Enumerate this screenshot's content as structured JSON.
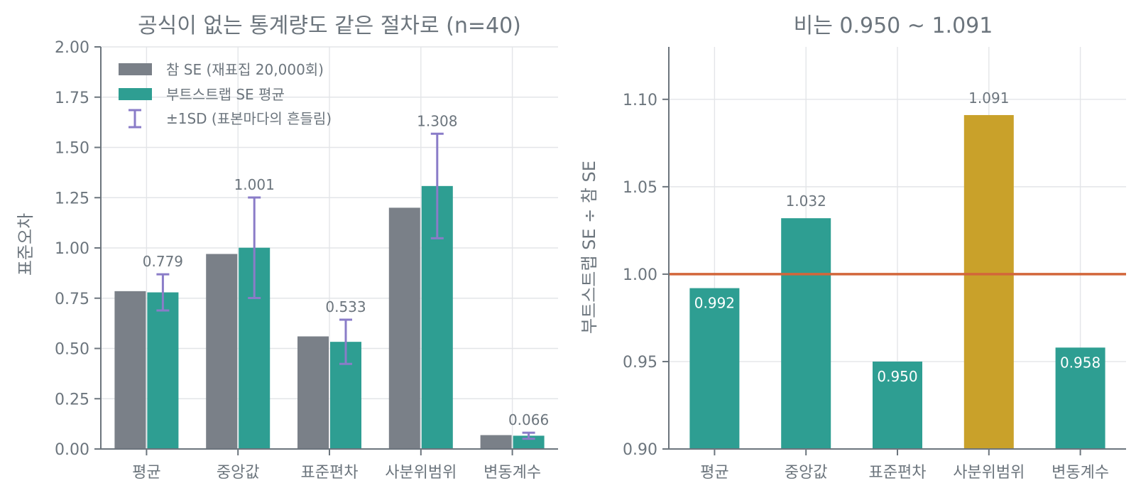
{
  "chart_data": [
    {
      "type": "bar",
      "title": "공식이 없는 통계량도 같은 절차로 (n=40)",
      "ylabel": "표준오차",
      "xlabel": "",
      "ylim": [
        0,
        2.0
      ],
      "yticks": [
        "0.00",
        "0.25",
        "0.50",
        "0.75",
        "1.00",
        "1.25",
        "1.50",
        "1.75",
        "2.00"
      ],
      "categories": [
        "평균",
        "중앙값",
        "표준편차",
        "사분위범위",
        "변동계수"
      ],
      "series": [
        {
          "name": "참 SE (재표집 20,000회)",
          "color": "#7a8088",
          "values": [
            0.785,
            0.97,
            0.56,
            1.2,
            0.069
          ]
        },
        {
          "name": "부트스트랩 SE 평균",
          "color": "#2e9e92",
          "values": [
            0.779,
            1.001,
            0.533,
            1.308,
            0.066
          ]
        }
      ],
      "error_bars": {
        "name": "±1SD (표본마다의 흔들림)",
        "color": "#8a7cc8",
        "sd": [
          0.09,
          0.25,
          0.11,
          0.26,
          0.015
        ]
      },
      "data_labels": [
        "0.779",
        "1.001",
        "0.533",
        "1.308",
        "0.066"
      ],
      "legend_position": "top-left",
      "grid": true
    },
    {
      "type": "bar",
      "title": "비는 0.950 ~ 1.091",
      "ylabel": "부트스트랩 SE ÷ 참 SE",
      "xlabel": "",
      "ylim": [
        0.9,
        1.13
      ],
      "yticks": [
        "0.90",
        "0.95",
        "1.00",
        "1.05",
        "1.10"
      ],
      "categories": [
        "평균",
        "중앙값",
        "표준편차",
        "사분위범위",
        "변동계수"
      ],
      "values": [
        0.992,
        1.032,
        0.95,
        1.091,
        0.958
      ],
      "data_labels": [
        "0.992",
        "1.032",
        "0.950",
        "1.091",
        "0.958"
      ],
      "bar_colors": [
        "#2e9e92",
        "#2e9e92",
        "#2e9e92",
        "#c9a12a",
        "#2e9e92"
      ],
      "reference_line": {
        "y": 1.0,
        "color": "#d2663a"
      },
      "grid": true
    }
  ]
}
